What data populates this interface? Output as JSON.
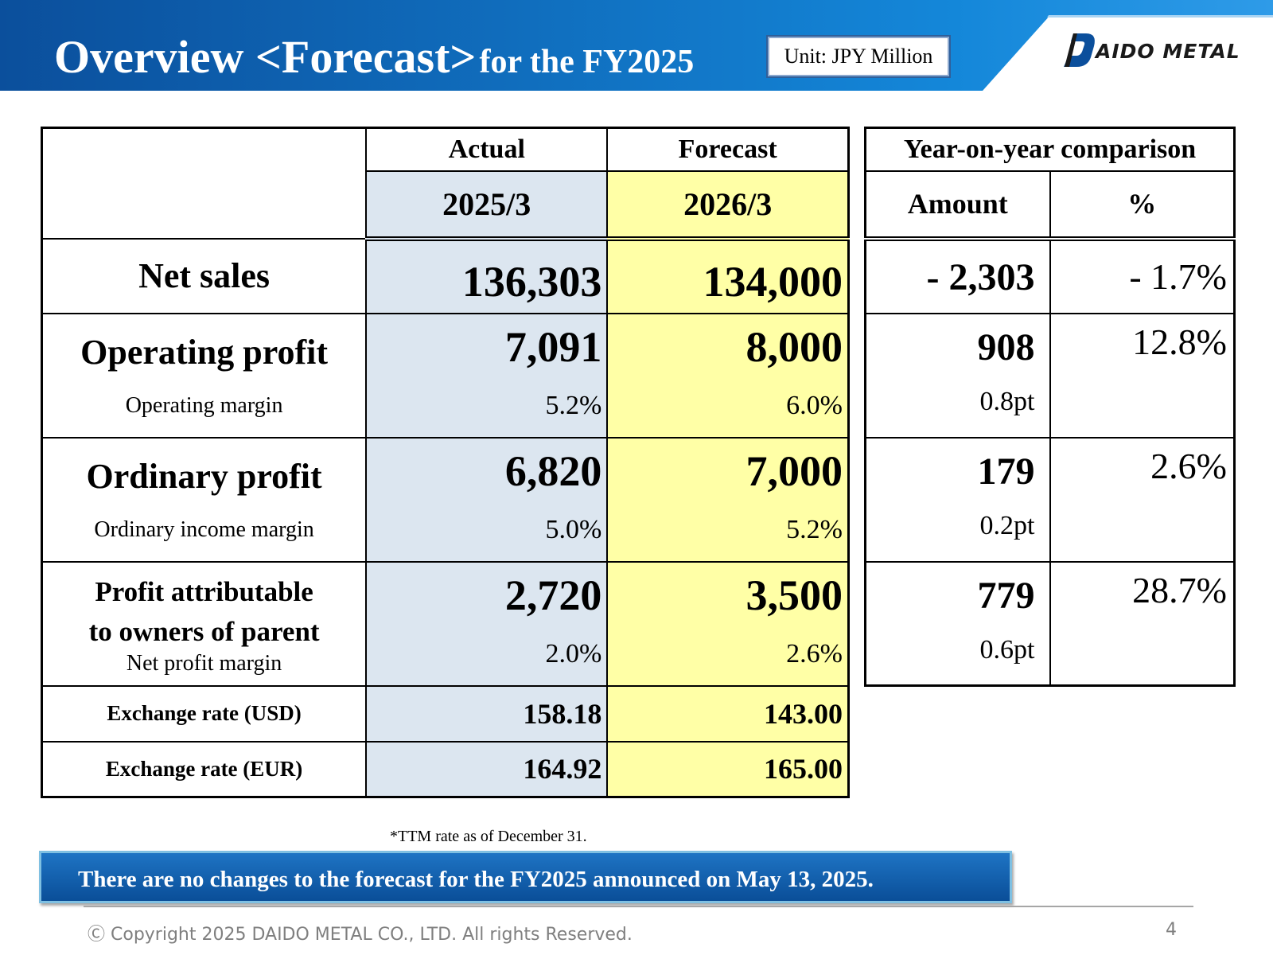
{
  "header": {
    "title_main": "Overview <Forecast>",
    "title_tail": "for the FY2025",
    "unit_label": "Unit: JPY Million",
    "logo_text": "AIDO METAL",
    "colors": {
      "band_dark": "#0b4f9c",
      "band_light": "#1487d9",
      "accent": "#2e9be8"
    }
  },
  "table": {
    "col_actual": "Actual",
    "col_forecast": "Forecast",
    "year_actual": "2025/3",
    "year_forecast": "2026/3",
    "colors": {
      "actual_bg": "#dce6f0",
      "forecast_bg": "#ffffa6"
    },
    "rows": [
      {
        "label": "Net sales",
        "actual": "136,303",
        "forecast": "134,000"
      },
      {
        "label": "Operating profit",
        "sub": "Operating margin",
        "actual": "7,091",
        "actual_m": "5.2%",
        "forecast": "8,000",
        "forecast_m": "6.0%"
      },
      {
        "label": "Ordinary profit",
        "sub": "Ordinary income margin",
        "actual": "6,820",
        "actual_m": "5.0%",
        "forecast": "7,000",
        "forecast_m": "5.2%"
      },
      {
        "label1": "Profit attributable",
        "label2": "to owners of parent",
        "sub": "Net profit margin",
        "actual": "2,720",
        "actual_m": "2.0%",
        "forecast": "3,500",
        "forecast_m": "2.6%"
      },
      {
        "label": "Exchange rate (USD)",
        "actual": "158.18",
        "forecast": "143.00"
      },
      {
        "label": "Exchange rate (EUR)",
        "actual": "164.92",
        "forecast": "165.00"
      }
    ]
  },
  "yoy": {
    "title": "Year-on-year comparison",
    "col_amount": "Amount",
    "col_pct": "%",
    "rows": [
      {
        "amount": "- 2,303",
        "pct": "- 1.7%"
      },
      {
        "amount": "908",
        "pt": "0.8pt",
        "pct": "12.8%"
      },
      {
        "amount": "179",
        "pt": "0.2pt",
        "pct": "2.6%"
      },
      {
        "amount": "779",
        "pt": "0.6pt",
        "pct": "28.7%"
      }
    ]
  },
  "note": "*TTM rate as of December 31.",
  "banner": "There are no changes to the forecast for the FY2025 announced on May 13, 2025.",
  "footer": {
    "copyright": "Ⓒ Copyright 2025 DAIDO METAL CO., LTD. All rights Reserved.",
    "page": "4"
  }
}
